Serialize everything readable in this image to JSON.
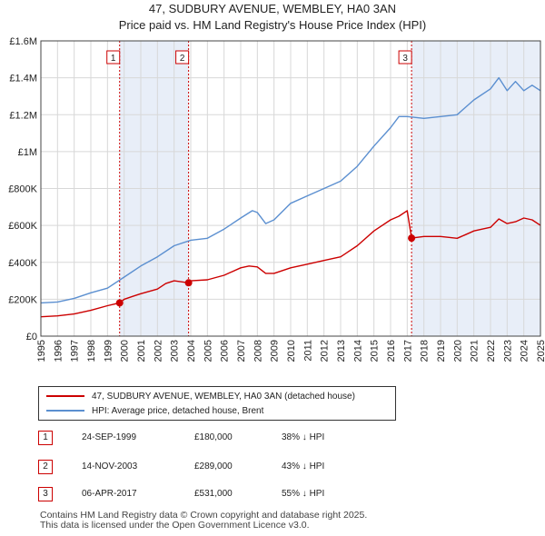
{
  "header": {
    "title": "47, SUDBURY AVENUE, WEMBLEY, HA0 3AN",
    "subtitle": "Price paid vs. HM Land Registry's House Price Index (HPI)"
  },
  "legend": {
    "property_label": "47, SUDBURY AVENUE, WEMBLEY, HA0 3AN (detached house)",
    "hpi_label": "HPI: Average price, detached house, Brent"
  },
  "sales": [
    {
      "num": "1",
      "date": "24-SEP-1999",
      "price": "£180,000",
      "hpi": "38% ↓ HPI"
    },
    {
      "num": "2",
      "date": "14-NOV-2003",
      "price": "£289,000",
      "hpi": "43% ↓ HPI"
    },
    {
      "num": "3",
      "date": "06-APR-2017",
      "price": "£531,000",
      "hpi": "55% ↓ HPI"
    }
  ],
  "footer": {
    "line1": "Contains HM Land Registry data © Crown copyright and database right 2025.",
    "line2": "This data is licensed under the Open Government Licence v3.0."
  },
  "colors": {
    "property": "#cc0000",
    "hpi": "#5b8fd0",
    "shade": "#e8eef8",
    "grid": "#d8d8d8"
  },
  "chart_data": {
    "type": "line",
    "title": "47, SUDBURY AVENUE, WEMBLEY, HA0 3AN",
    "xlim": [
      1995,
      2025
    ],
    "ylim": [
      0,
      1600000
    ],
    "x_ticks": [
      "1995",
      "1996",
      "1997",
      "1998",
      "1999",
      "2000",
      "2001",
      "2002",
      "2003",
      "2004",
      "2005",
      "2006",
      "2007",
      "2008",
      "2009",
      "2010",
      "2011",
      "2012",
      "2013",
      "2014",
      "2015",
      "2016",
      "2017",
      "2018",
      "2019",
      "2020",
      "2021",
      "2022",
      "2023",
      "2024",
      "2025"
    ],
    "y_ticks": [
      {
        "value": 0,
        "label": "£0"
      },
      {
        "value": 200000,
        "label": "£200K"
      },
      {
        "value": 400000,
        "label": "£400K"
      },
      {
        "value": 600000,
        "label": "£600K"
      },
      {
        "value": 800000,
        "label": "£800K"
      },
      {
        "value": 1000000,
        "label": "£1M"
      },
      {
        "value": 1200000,
        "label": "£1.2M"
      },
      {
        "value": 1400000,
        "label": "£1.4M"
      },
      {
        "value": 1600000,
        "label": "£1.6M"
      }
    ],
    "sale_markers": [
      {
        "label": "1",
        "x": 1999.73,
        "y": 180000
      },
      {
        "label": "2",
        "x": 2003.87,
        "y": 289000
      },
      {
        "label": "3",
        "x": 2017.26,
        "y": 531000
      }
    ],
    "series": [
      {
        "name": "47, SUDBURY AVENUE, WEMBLEY, HA0 3AN (detached house)",
        "x": [
          1995,
          1996,
          1997,
          1998,
          1999,
          1999.73,
          2000,
          2000.5,
          2001,
          2002,
          2002.5,
          2003,
          2003.87,
          2004,
          2005,
          2006,
          2007,
          2007.5,
          2008,
          2008.5,
          2009,
          2010,
          2011,
          2012,
          2013,
          2014,
          2015,
          2016,
          2016.5,
          2017,
          2017.26,
          2018,
          2019,
          2019.5,
          2020,
          2020.5,
          2021,
          2022,
          2022.5,
          2023,
          2023.5,
          2024,
          2024.5,
          2025
        ],
        "y": [
          105000,
          110000,
          120000,
          140000,
          165000,
          180000,
          200000,
          215000,
          230000,
          255000,
          285000,
          300000,
          289000,
          300000,
          305000,
          330000,
          370000,
          380000,
          375000,
          340000,
          340000,
          370000,
          390000,
          410000,
          430000,
          490000,
          570000,
          630000,
          650000,
          680000,
          531000,
          540000,
          540000,
          535000,
          530000,
          550000,
          570000,
          590000,
          635000,
          610000,
          620000,
          640000,
          630000,
          600000
        ]
      },
      {
        "name": "HPI: Average price, detached house, Brent",
        "x": [
          1995,
          1996,
          1997,
          1998,
          1999,
          2000,
          2001,
          2002,
          2003,
          2004,
          2005,
          2006,
          2007,
          2007.7,
          2008,
          2008.5,
          2009,
          2010,
          2011,
          2012,
          2013,
          2014,
          2015,
          2016,
          2016.5,
          2017,
          2018,
          2019,
          2020,
          2020.5,
          2021,
          2022,
          2022.5,
          2023,
          2023.5,
          2024,
          2024.5,
          2025
        ],
        "y": [
          180000,
          185000,
          205000,
          235000,
          260000,
          320000,
          380000,
          430000,
          490000,
          520000,
          530000,
          580000,
          640000,
          680000,
          670000,
          610000,
          630000,
          720000,
          760000,
          800000,
          840000,
          920000,
          1030000,
          1130000,
          1190000,
          1190000,
          1180000,
          1190000,
          1200000,
          1240000,
          1280000,
          1340000,
          1400000,
          1330000,
          1380000,
          1330000,
          1360000,
          1330000
        ]
      }
    ]
  }
}
